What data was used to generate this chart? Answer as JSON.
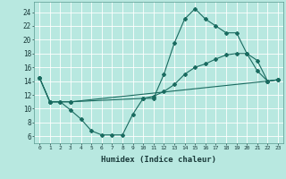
{
  "xlabel": "Humidex (Indice chaleur)",
  "bg_color": "#b8e8e0",
  "line_color": "#1a6b60",
  "grid_color": "#ffffff",
  "xlim": [
    -0.5,
    23.5
  ],
  "ylim": [
    5,
    25.5
  ],
  "yticks": [
    6,
    8,
    10,
    12,
    14,
    16,
    18,
    20,
    22,
    24
  ],
  "xticks": [
    0,
    1,
    2,
    3,
    4,
    5,
    6,
    7,
    8,
    9,
    10,
    11,
    12,
    13,
    14,
    15,
    16,
    17,
    18,
    19,
    20,
    21,
    22,
    23
  ],
  "line1_x": [
    0,
    1,
    2,
    3,
    4,
    5,
    6,
    7,
    8,
    9,
    10,
    11,
    12,
    13,
    14,
    15,
    16,
    17,
    18,
    19,
    20,
    21,
    22,
    23
  ],
  "line1_y": [
    14.5,
    11,
    11,
    9.8,
    8.5,
    6.8,
    6.2,
    6.2,
    6.2,
    9.2,
    11.5,
    11.5,
    15.0,
    19.5,
    23.0,
    24.5,
    23.0,
    22.0,
    21.0,
    21.0,
    18.0,
    15.5,
    14.0,
    14.2
  ],
  "line2_x": [
    0,
    1,
    2,
    3,
    22,
    23
  ],
  "line2_y": [
    14.5,
    11,
    11,
    11,
    14.0,
    14.2
  ],
  "line3_x": [
    0,
    1,
    3,
    10,
    11,
    12,
    13,
    14,
    15,
    16,
    17,
    18,
    19,
    20,
    21,
    22,
    23
  ],
  "line3_y": [
    14.5,
    11,
    11,
    11.5,
    11.8,
    12.5,
    13.5,
    15.0,
    16.0,
    16.5,
    17.2,
    17.8,
    18.0,
    18.0,
    17.0,
    14.0,
    14.2
  ]
}
